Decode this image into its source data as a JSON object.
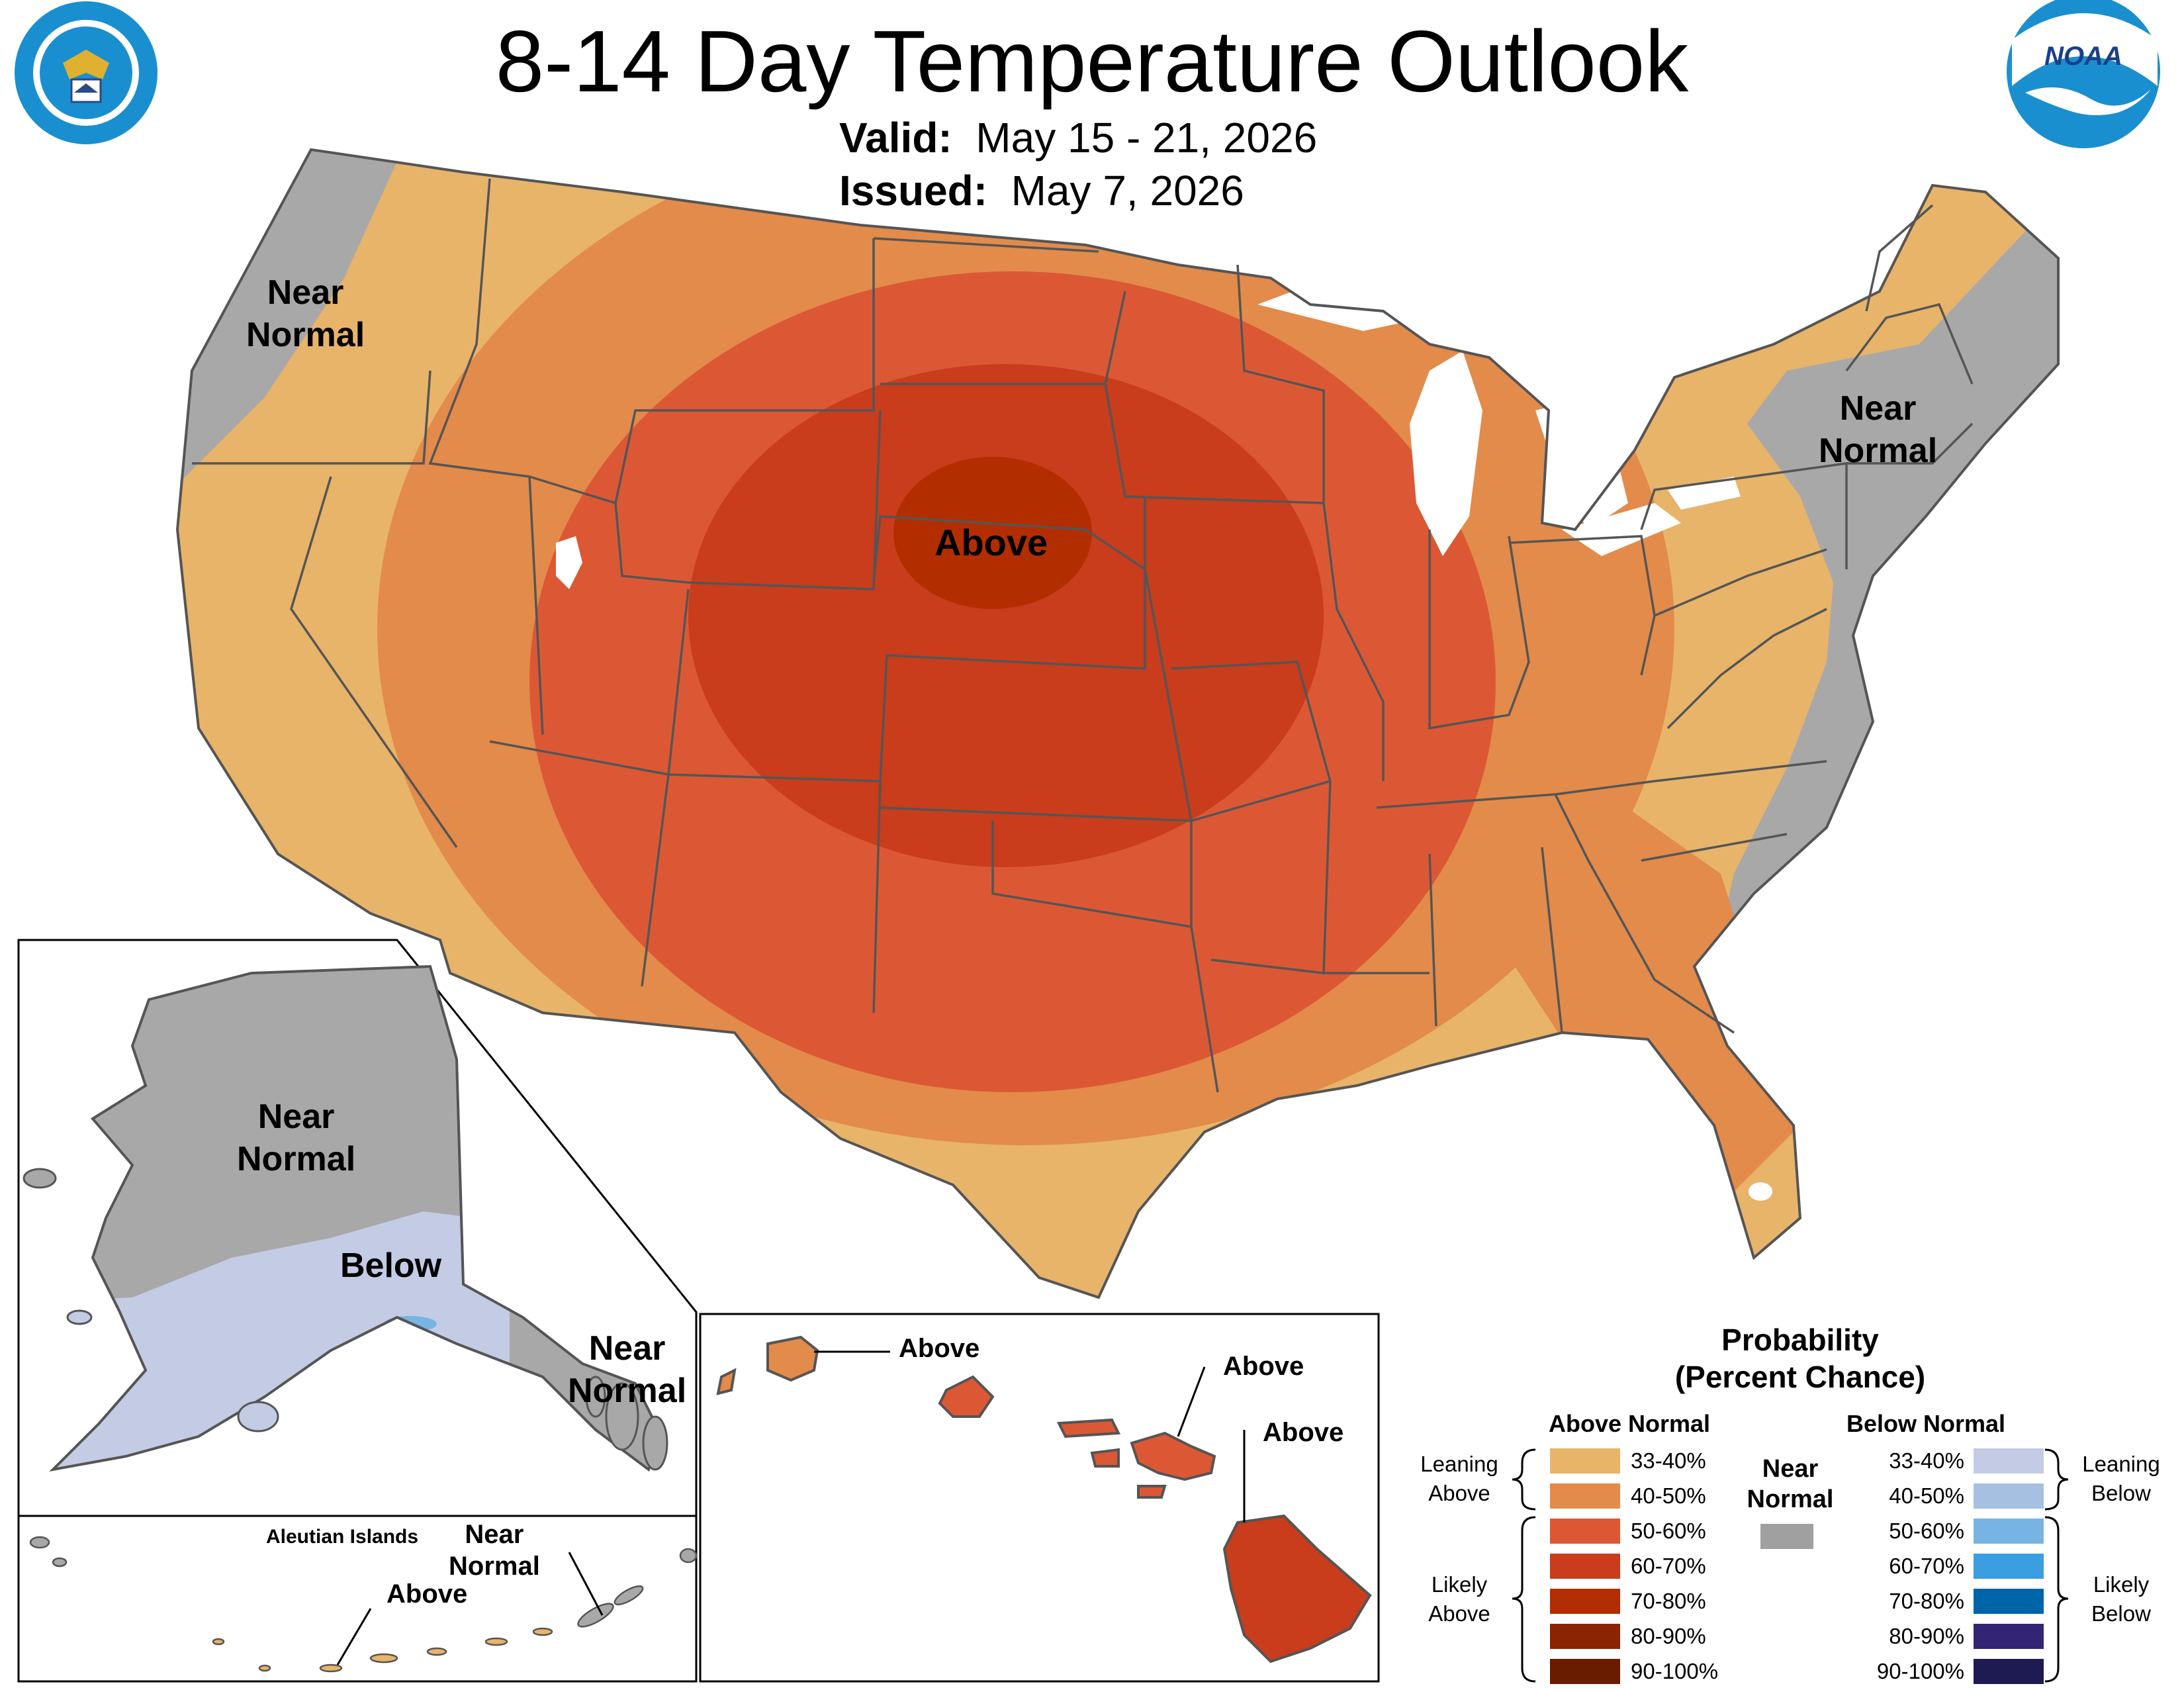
{
  "title": "8-14 Day Temperature Outlook",
  "valid_label": "Valid:",
  "valid_value": "May 15 - 21, 2026",
  "issued_label": "Issued:",
  "issued_value": "May 7, 2026",
  "logos": {
    "left": "department-of-commerce-seal",
    "right": "noaa-logo",
    "right_text": "NOAA"
  },
  "conus_labels": {
    "northwest": [
      "Near",
      "Normal"
    ],
    "northeast": [
      "Near",
      "Normal"
    ],
    "center": "Above"
  },
  "alaska_labels": {
    "north": [
      "Near",
      "Normal"
    ],
    "south": "Below",
    "panhandle": [
      "Near",
      "Normal"
    ]
  },
  "aleutian_labels": {
    "title": "Aleutian Islands",
    "east": [
      "Near",
      "Normal"
    ],
    "west": "Above"
  },
  "hawaii_labels": [
    "Above",
    "Above",
    "Above"
  ],
  "legend": {
    "title_line1": "Probability",
    "title_line2": "(Percent Chance)",
    "above_header": "Above Normal",
    "below_header": "Below Normal",
    "near_normal": [
      "Near",
      "Normal"
    ],
    "near_normal_color": "#a0a0a0",
    "leaning_above": [
      "Leaning",
      "Above"
    ],
    "likely_above": [
      "Likely",
      "Above"
    ],
    "leaning_below": [
      "Leaning",
      "Below"
    ],
    "likely_below": [
      "Likely",
      "Below"
    ],
    "above": [
      {
        "range": "33-40%",
        "color": "#e8b46a"
      },
      {
        "range": "40-50%",
        "color": "#e38b4a"
      },
      {
        "range": "50-60%",
        "color": "#dc5835"
      },
      {
        "range": "60-70%",
        "color": "#c93c1c"
      },
      {
        "range": "70-80%",
        "color": "#b22e00"
      },
      {
        "range": "80-90%",
        "color": "#8b2400"
      },
      {
        "range": "90-100%",
        "color": "#6a1c00"
      }
    ],
    "below": [
      {
        "range": "33-40%",
        "color": "#c3cbe5"
      },
      {
        "range": "40-50%",
        "color": "#a5c0e0"
      },
      {
        "range": "50-60%",
        "color": "#78b4e3"
      },
      {
        "range": "60-70%",
        "color": "#3a9ee0"
      },
      {
        "range": "70-80%",
        "color": "#0064a8"
      },
      {
        "range": "80-90%",
        "color": "#342474"
      },
      {
        "range": "90-100%",
        "color": "#1e1a52"
      }
    ]
  }
}
